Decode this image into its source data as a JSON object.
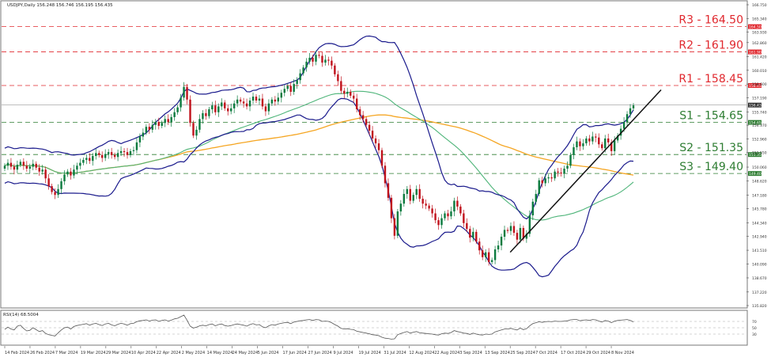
{
  "header": {
    "symbol_line": "USDJPY,Daily  156.248 156.746 156.195 156.435",
    "rsi_label": "RSI(14) 68.5004"
  },
  "colors": {
    "bull": "#0b7a3e",
    "bear": "#c0121c",
    "bollinger": "#1a1a8c",
    "ma_fast": "#4fb57a",
    "ma_slow": "#f5a623",
    "resistance": "#e0282e",
    "support": "#2e7d32",
    "trendline": "#111111",
    "rsi_line": "#555555",
    "price_tag_bg": "#d9d9d9"
  },
  "chart_data": [
    {
      "type": "candlestick",
      "title": "USDJPY,Daily",
      "ylim": [
        135.82,
        166.75
      ],
      "y_ticks": [
        "166.750",
        "165.340",
        "163.930",
        "162.860",
        "161.420",
        "160.010",
        "158.600",
        "157.190",
        "155.740",
        "154.370",
        "152.960",
        "151.550",
        "150.060",
        "148.620",
        "147.180",
        "145.780",
        "144.340",
        "142.940",
        "141.510",
        "140.090",
        "138.670",
        "137.220",
        "135.820"
      ],
      "x_ticks": [
        "14 Feb 2024",
        "26 Feb 2024",
        "7 Mar 2024",
        "19 Mar 2024",
        "29 Mar 2024",
        "10 Apr 2024",
        "22 Apr 2024",
        "2 May 2024",
        "14 May 2024",
        "24 May 2024",
        "5 Jun 2024",
        "17 Jun 2024",
        "27 Jun 2024",
        "9 Jul 2024",
        "19 Jul 2024",
        "31 Jul 2024",
        "12 Aug 2024",
        "22 Aug 2024",
        "3 Sep 2024",
        "13 Sep 2024",
        "25 Sep 2024",
        "7 Oct 2024",
        "17 Oct 2024",
        "29 Oct 2024",
        "8 Nov 2024"
      ],
      "current_price": 156.435,
      "levels": [
        {
          "label": "R3 - 164.50",
          "value": 164.5,
          "tag": "164.500",
          "kind": "resistance"
        },
        {
          "label": "R2 - 161.90",
          "value": 161.9,
          "tag": "161.900",
          "kind": "resistance"
        },
        {
          "label": "R1 - 158.45",
          "value": 158.45,
          "tag": "158.450",
          "kind": "resistance"
        },
        {
          "label": "S1 - 154.65",
          "value": 154.65,
          "tag": "154.650",
          "kind": "support"
        },
        {
          "label": "S2 - 151.35",
          "value": 151.35,
          "tag": "151.350",
          "kind": "support"
        },
        {
          "label": "S3 - 149.40",
          "value": 149.4,
          "tag": "149.400",
          "kind": "support"
        }
      ],
      "series": [
        {
          "kind": "price",
          "values": [
            150.2,
            150.5,
            150.1,
            149.8,
            150.3,
            150.6,
            150.2,
            149.9,
            150.1,
            150.4,
            150.0,
            149.6,
            149.8,
            148.9,
            148.1,
            147.5,
            147.2,
            147.8,
            148.6,
            149.3,
            149.6,
            149.2,
            149.8,
            150.2,
            150.5,
            150.8,
            151.0,
            150.7,
            151.2,
            151.5,
            151.3,
            151.0,
            151.4,
            151.6,
            151.3,
            151.1,
            151.5,
            151.7,
            151.6,
            151.3,
            151.7,
            151.8,
            152.6,
            153.2,
            153.6,
            154.2,
            153.9,
            154.4,
            154.7,
            154.3,
            154.6,
            155.0,
            154.7,
            155.2,
            155.7,
            156.2,
            157.2,
            158.3,
            157.0,
            154.6,
            153.3,
            153.9,
            155.0,
            155.6,
            155.3,
            156.0,
            156.4,
            155.7,
            156.3,
            156.7,
            156.1,
            155.8,
            156.1,
            156.6,
            157.0,
            156.8,
            156.6,
            156.3,
            156.9,
            157.3,
            156.9,
            157.1,
            156.3,
            155.8,
            156.6,
            157.0,
            156.8,
            157.2,
            157.7,
            158.1,
            158.4,
            157.8,
            158.6,
            159.0,
            159.7,
            160.3,
            160.9,
            161.3,
            160.9,
            161.6,
            161.5,
            160.8,
            161.1,
            161.0,
            160.5,
            159.6,
            158.9,
            157.9,
            157.6,
            157.8,
            157.4,
            157.1,
            156.0,
            155.4,
            155.0,
            154.4,
            153.8,
            153.0,
            152.5,
            151.8,
            150.2,
            148.4,
            146.9,
            144.8,
            143.0,
            145.5,
            146.3,
            147.3,
            147.8,
            146.6,
            147.2,
            147.8,
            146.8,
            146.3,
            146.1,
            145.8,
            145.3,
            144.6,
            144.1,
            144.8,
            145.3,
            145.0,
            145.5,
            146.6,
            146.0,
            145.3,
            144.3,
            143.7,
            142.8,
            143.4,
            142.4,
            141.5,
            140.8,
            141.3,
            140.3,
            140.5,
            141.6,
            142.0,
            142.9,
            143.6,
            143.5,
            144.0,
            143.3,
            142.6,
            143.8,
            142.7,
            143.2,
            145.1,
            146.5,
            147.3,
            148.7,
            148.4,
            148.9,
            149.0,
            148.9,
            149.6,
            149.5,
            149.4,
            149.9,
            150.2,
            151.3,
            152.1,
            152.7,
            152.2,
            152.5,
            153.0,
            152.7,
            153.2,
            153.1,
            152.4,
            152.0,
            153.0,
            152.6,
            151.7,
            152.8,
            153.3,
            154.0,
            154.7,
            155.5,
            156.1,
            156.4
          ]
        },
        {
          "kind": "bb_upper",
          "name": ""
        },
        {
          "kind": "bb_lower",
          "name": ""
        },
        {
          "kind": "ma_fast",
          "name": ""
        },
        {
          "kind": "ma_slow",
          "name": ""
        }
      ],
      "trendline": {
        "from": [
          141.3,
          "25 Sep 2024"
        ],
        "to": [
          158.0,
          "after 8 Nov 2024"
        ]
      }
    },
    {
      "type": "line",
      "title": "RSI(14) 68.5004",
      "ylim": [
        0,
        100
      ],
      "y_ticks": [
        "70",
        "50",
        "30"
      ],
      "values": [
        45,
        52,
        46,
        43,
        55,
        58,
        48,
        40,
        42,
        50,
        44,
        38,
        41,
        32,
        28,
        26,
        24,
        34,
        43,
        50,
        52,
        46,
        54,
        57,
        59,
        61,
        63,
        58,
        62,
        64,
        60,
        57,
        62,
        64,
        59,
        56,
        61,
        64,
        62,
        58,
        63,
        64,
        69,
        72,
        73,
        75,
        71,
        74,
        75,
        70,
        73,
        75,
        71,
        74,
        78,
        80,
        85,
        90,
        74,
        55,
        49,
        52,
        56,
        58,
        56,
        60,
        62,
        56,
        60,
        62,
        57,
        55,
        57,
        60,
        62,
        60,
        58,
        55,
        60,
        63,
        59,
        60,
        53,
        50,
        56,
        60,
        58,
        62,
        64,
        66,
        67,
        63,
        68,
        70,
        72,
        73,
        75,
        76,
        73,
        76,
        75,
        70,
        71,
        70,
        66,
        60,
        55,
        48,
        46,
        47,
        45,
        44,
        39,
        37,
        35,
        33,
        31,
        28,
        27,
        25,
        20,
        17,
        16,
        14,
        15,
        28,
        32,
        35,
        38,
        33,
        36,
        38,
        34,
        33,
        32,
        31,
        30,
        28,
        27,
        31,
        33,
        32,
        35,
        41,
        38,
        36,
        33,
        32,
        29,
        33,
        30,
        28,
        27,
        30,
        29,
        30,
        37,
        40,
        43,
        46,
        46,
        48,
        45,
        43,
        49,
        44,
        47,
        56,
        63,
        66,
        69,
        67,
        69,
        70,
        69,
        71,
        70,
        70,
        71,
        72,
        75,
        76,
        76,
        72,
        74,
        75,
        73,
        76,
        75,
        71,
        68,
        73,
        71,
        66,
        71,
        73,
        74,
        75,
        76,
        73,
        68.5
      ]
    }
  ]
}
